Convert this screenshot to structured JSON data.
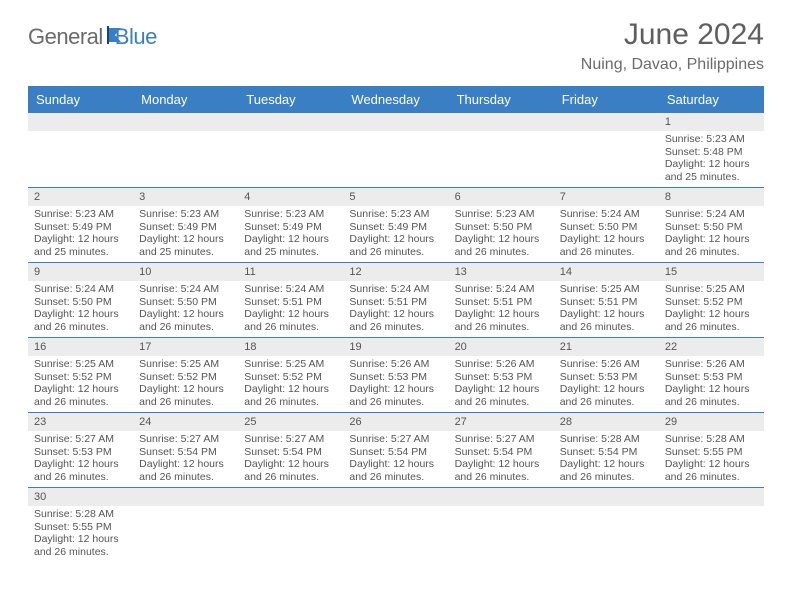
{
  "brand": {
    "part1": "General",
    "part2": "Blue",
    "color_general": "#6b6b6b",
    "color_blue": "#3a7fc4"
  },
  "title": "June 2024",
  "location": "Nuing, Davao, Philippines",
  "header_bg": "#3a7fc4",
  "header_text": "#ffffff",
  "daynum_bg": "#ececec",
  "cell_border": "#3a7fc4",
  "weekdays": [
    "Sunday",
    "Monday",
    "Tuesday",
    "Wednesday",
    "Thursday",
    "Friday",
    "Saturday"
  ],
  "weeks": [
    [
      null,
      null,
      null,
      null,
      null,
      null,
      {
        "n": "1",
        "sr": "5:23 AM",
        "ss": "5:48 PM",
        "dl": "12 hours and 25 minutes."
      }
    ],
    [
      {
        "n": "2",
        "sr": "5:23 AM",
        "ss": "5:49 PM",
        "dl": "12 hours and 25 minutes."
      },
      {
        "n": "3",
        "sr": "5:23 AM",
        "ss": "5:49 PM",
        "dl": "12 hours and 25 minutes."
      },
      {
        "n": "4",
        "sr": "5:23 AM",
        "ss": "5:49 PM",
        "dl": "12 hours and 25 minutes."
      },
      {
        "n": "5",
        "sr": "5:23 AM",
        "ss": "5:49 PM",
        "dl": "12 hours and 26 minutes."
      },
      {
        "n": "6",
        "sr": "5:23 AM",
        "ss": "5:50 PM",
        "dl": "12 hours and 26 minutes."
      },
      {
        "n": "7",
        "sr": "5:24 AM",
        "ss": "5:50 PM",
        "dl": "12 hours and 26 minutes."
      },
      {
        "n": "8",
        "sr": "5:24 AM",
        "ss": "5:50 PM",
        "dl": "12 hours and 26 minutes."
      }
    ],
    [
      {
        "n": "9",
        "sr": "5:24 AM",
        "ss": "5:50 PM",
        "dl": "12 hours and 26 minutes."
      },
      {
        "n": "10",
        "sr": "5:24 AM",
        "ss": "5:50 PM",
        "dl": "12 hours and 26 minutes."
      },
      {
        "n": "11",
        "sr": "5:24 AM",
        "ss": "5:51 PM",
        "dl": "12 hours and 26 minutes."
      },
      {
        "n": "12",
        "sr": "5:24 AM",
        "ss": "5:51 PM",
        "dl": "12 hours and 26 minutes."
      },
      {
        "n": "13",
        "sr": "5:24 AM",
        "ss": "5:51 PM",
        "dl": "12 hours and 26 minutes."
      },
      {
        "n": "14",
        "sr": "5:25 AM",
        "ss": "5:51 PM",
        "dl": "12 hours and 26 minutes."
      },
      {
        "n": "15",
        "sr": "5:25 AM",
        "ss": "5:52 PM",
        "dl": "12 hours and 26 minutes."
      }
    ],
    [
      {
        "n": "16",
        "sr": "5:25 AM",
        "ss": "5:52 PM",
        "dl": "12 hours and 26 minutes."
      },
      {
        "n": "17",
        "sr": "5:25 AM",
        "ss": "5:52 PM",
        "dl": "12 hours and 26 minutes."
      },
      {
        "n": "18",
        "sr": "5:25 AM",
        "ss": "5:52 PM",
        "dl": "12 hours and 26 minutes."
      },
      {
        "n": "19",
        "sr": "5:26 AM",
        "ss": "5:53 PM",
        "dl": "12 hours and 26 minutes."
      },
      {
        "n": "20",
        "sr": "5:26 AM",
        "ss": "5:53 PM",
        "dl": "12 hours and 26 minutes."
      },
      {
        "n": "21",
        "sr": "5:26 AM",
        "ss": "5:53 PM",
        "dl": "12 hours and 26 minutes."
      },
      {
        "n": "22",
        "sr": "5:26 AM",
        "ss": "5:53 PM",
        "dl": "12 hours and 26 minutes."
      }
    ],
    [
      {
        "n": "23",
        "sr": "5:27 AM",
        "ss": "5:53 PM",
        "dl": "12 hours and 26 minutes."
      },
      {
        "n": "24",
        "sr": "5:27 AM",
        "ss": "5:54 PM",
        "dl": "12 hours and 26 minutes."
      },
      {
        "n": "25",
        "sr": "5:27 AM",
        "ss": "5:54 PM",
        "dl": "12 hours and 26 minutes."
      },
      {
        "n": "26",
        "sr": "5:27 AM",
        "ss": "5:54 PM",
        "dl": "12 hours and 26 minutes."
      },
      {
        "n": "27",
        "sr": "5:27 AM",
        "ss": "5:54 PM",
        "dl": "12 hours and 26 minutes."
      },
      {
        "n": "28",
        "sr": "5:28 AM",
        "ss": "5:54 PM",
        "dl": "12 hours and 26 minutes."
      },
      {
        "n": "29",
        "sr": "5:28 AM",
        "ss": "5:55 PM",
        "dl": "12 hours and 26 minutes."
      }
    ],
    [
      {
        "n": "30",
        "sr": "5:28 AM",
        "ss": "5:55 PM",
        "dl": "12 hours and 26 minutes."
      },
      null,
      null,
      null,
      null,
      null,
      null
    ]
  ],
  "labels": {
    "sunrise": "Sunrise: ",
    "sunset": "Sunset: ",
    "daylight": "Daylight: "
  }
}
